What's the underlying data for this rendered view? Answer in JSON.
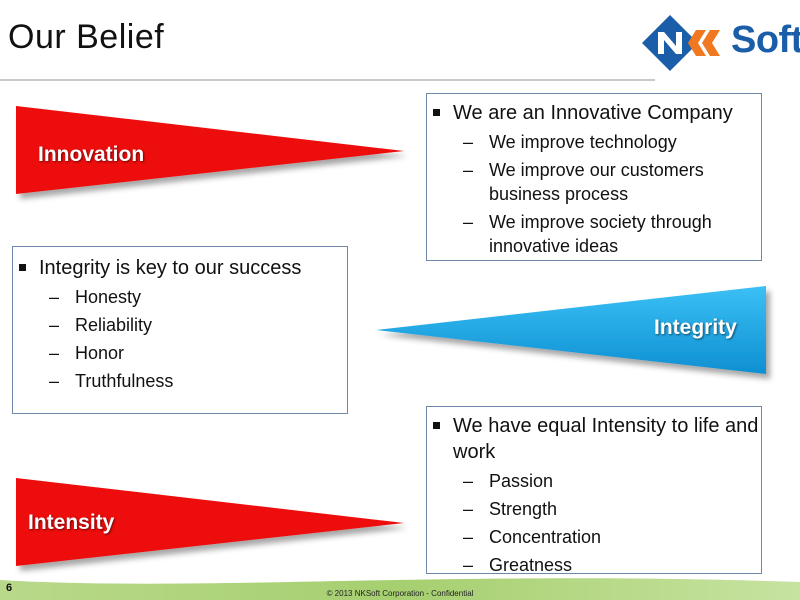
{
  "title": "Our Belief",
  "logo": {
    "text": "Soft",
    "colors": {
      "blue": "#1a5da8",
      "orange": "#f07820"
    }
  },
  "arrows": [
    {
      "name": "innovation",
      "label": "Innovation",
      "color": "#ee1111"
    },
    {
      "name": "integrity",
      "label": "Integrity",
      "color": "#1aa6e6"
    },
    {
      "name": "intensity",
      "label": "Intensity",
      "color": "#ee1111"
    }
  ],
  "boxes": {
    "innovation": {
      "bullet": "We are an Innovative Company",
      "subs": [
        "We improve technology",
        "We improve our customers business process",
        "We improve society through innovative ideas"
      ]
    },
    "integrity": {
      "bullet": "Integrity is key to our success",
      "subs": [
        "Honesty",
        "Reliability",
        "Honor",
        "Truthfulness"
      ]
    },
    "intensity": {
      "bullet": "We have equal Intensity to life and work",
      "subs": [
        "Passion",
        "Strength",
        "Concentration",
        "Greatness"
      ]
    }
  },
  "footer": {
    "slide_number": "6",
    "text": "© 2013 NKSoft Corporation  -  Confidential"
  }
}
